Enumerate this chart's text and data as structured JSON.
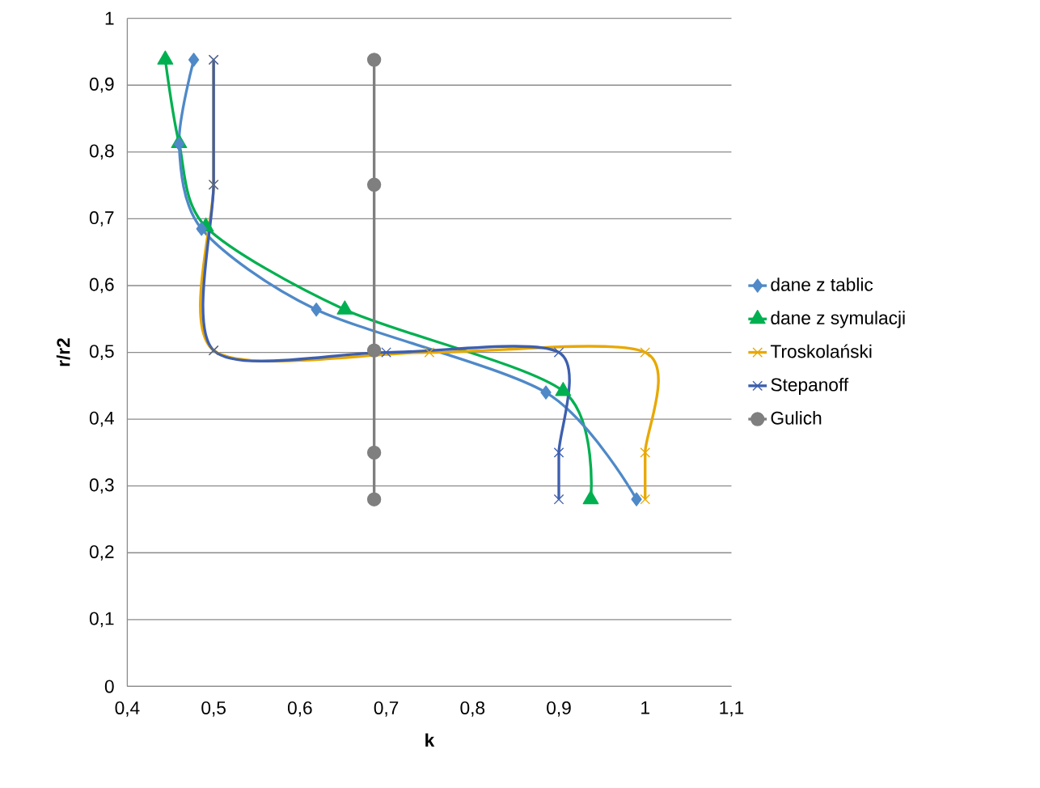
{
  "chart_data": {
    "type": "line",
    "xlabel": "k",
    "ylabel": "r/r2",
    "xlim": [
      0.4,
      1.1
    ],
    "ylim": [
      0,
      1
    ],
    "xticks": [
      {
        "value": 0.4,
        "label": "0,4"
      },
      {
        "value": 0.5,
        "label": "0,5"
      },
      {
        "value": 0.6,
        "label": "0,6"
      },
      {
        "value": 0.7,
        "label": "0,7"
      },
      {
        "value": 0.8,
        "label": "0,8"
      },
      {
        "value": 0.9,
        "label": "0,9"
      },
      1,
      {
        "value": 1.1,
        "label": "1,1"
      }
    ],
    "yticks": [
      0,
      {
        "value": 0.1,
        "label": "0,1"
      },
      {
        "value": 0.2,
        "label": "0,2"
      },
      {
        "value": 0.3,
        "label": "0,3"
      },
      {
        "value": 0.4,
        "label": "0,4"
      },
      {
        "value": 0.5,
        "label": "0,5"
      },
      {
        "value": 0.6,
        "label": "0,6"
      },
      {
        "value": 0.7,
        "label": "0,7"
      },
      {
        "value": 0.8,
        "label": "0,8"
      },
      {
        "value": 0.9,
        "label": "0,9"
      },
      1
    ],
    "grid": "y",
    "legend": "right",
    "series": [
      {
        "name": "dane z tablic",
        "color": "#4f89c8",
        "marker": "diamond",
        "x": [
          0.477,
          0.46,
          0.486,
          0.619,
          0.885,
          0.99
        ],
        "values": [
          0.938,
          0.812,
          0.685,
          0.564,
          0.44,
          0.28
        ]
      },
      {
        "name": "dane z symulacji",
        "color": "#00b050",
        "marker": "triangle",
        "x": [
          0.444,
          0.46,
          0.491,
          0.652,
          0.905,
          0.937
        ],
        "values": [
          0.938,
          0.813,
          0.688,
          0.564,
          0.442,
          0.28
        ]
      },
      {
        "name": "Troskolański",
        "color": "#e8a800",
        "marker": "cross",
        "x": [
          0.5,
          0.5,
          0.5,
          0.75,
          1.0,
          1.0,
          1.0
        ],
        "values": [
          0.938,
          0.751,
          0.503,
          0.5,
          0.5,
          0.35,
          0.28
        ]
      },
      {
        "name": "Stepanoff",
        "color": "#3d5fae",
        "marker": "cross",
        "x": [
          0.5,
          0.5,
          0.5,
          0.7,
          0.9,
          0.9,
          0.9
        ],
        "values": [
          0.938,
          0.751,
          0.503,
          0.5,
          0.5,
          0.35,
          0.28
        ]
      },
      {
        "name": "Gulich",
        "color": "#7f7f7f",
        "marker": "circle",
        "x": [
          0.686,
          0.686,
          0.686,
          0.686,
          0.686
        ],
        "values": [
          0.938,
          0.751,
          0.503,
          0.35,
          0.28
        ]
      }
    ]
  }
}
